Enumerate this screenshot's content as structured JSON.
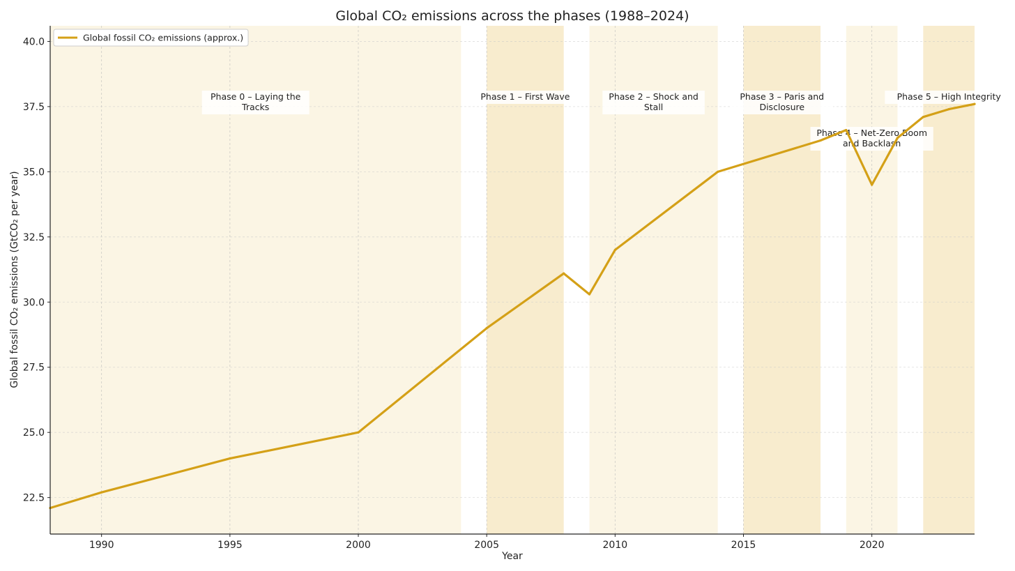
{
  "chart_data": {
    "type": "line",
    "title": "Global CO₂ emissions across the phases (1988–2024)",
    "xlabel": "Year",
    "ylabel": "Global fossil CO₂ emissions (GtCO₂ per year)",
    "xlim": [
      1988,
      2024
    ],
    "ylim": [
      21.1,
      40.6
    ],
    "xticks": [
      1990,
      1995,
      2000,
      2005,
      2010,
      2015,
      2020
    ],
    "yticks": [
      "22.5",
      "25.0",
      "27.5",
      "30.0",
      "32.5",
      "35.0",
      "37.5",
      "40.0"
    ],
    "grid": true,
    "legend_position": "top-left",
    "series": [
      {
        "name": "Global fossil CO₂ emissions (approx.)",
        "color": "#D4A017",
        "x": [
          1988,
          1990,
          1995,
          2000,
          2005,
          2008,
          2009,
          2010,
          2014,
          2018,
          2019,
          2020,
          2021,
          2022,
          2023,
          2024
        ],
        "y": [
          22.1,
          22.7,
          24.0,
          25.0,
          29.0,
          31.1,
          30.3,
          32.0,
          35.0,
          36.2,
          36.6,
          34.5,
          36.3,
          37.1,
          37.4,
          37.6
        ]
      }
    ],
    "phases": [
      {
        "label_lines": [
          "Phase 0 – Laying the",
          "Tracks"
        ],
        "start": 1988,
        "end": 2004,
        "color": "#FBF5E4"
      },
      {
        "label_lines": [
          "Phase 1 – First Wave"
        ],
        "start": 2005,
        "end": 2008,
        "color": "#F8ECCE"
      },
      {
        "label_lines": [
          "Phase 2 – Shock and",
          "Stall"
        ],
        "start": 2009,
        "end": 2014,
        "color": "#FBF5E4"
      },
      {
        "label_lines": [
          "Phase 3 – Paris and",
          "Disclosure"
        ],
        "start": 2015,
        "end": 2018,
        "color": "#F8ECCE"
      },
      {
        "label_lines": [
          "Phase 4 – Net-Zero Boom",
          "and Backlash"
        ],
        "start": 2019,
        "end": 2021,
        "color": "#FBF5E4"
      },
      {
        "label_lines": [
          "Phase 5 – High Integrity"
        ],
        "start": 2022,
        "end": 2024,
        "color": "#F8ECCE"
      }
    ]
  }
}
